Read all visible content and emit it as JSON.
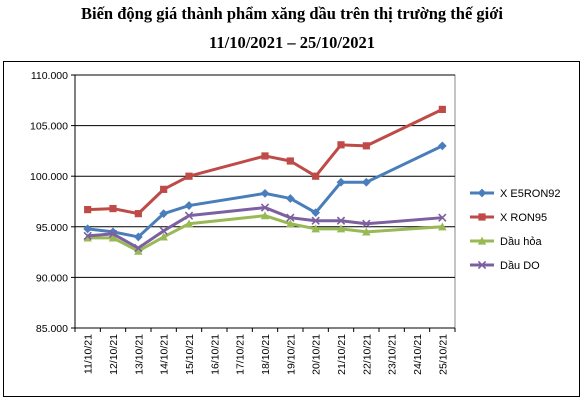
{
  "chart_data": {
    "type": "line",
    "title": "Biến động giá thành phẩm xăng dầu trên thị trường thế giới",
    "subtitle": "11/10/2021 – 25/10/2021",
    "xlabel": "",
    "ylabel": "",
    "categories": [
      "11/10/21",
      "12/10/21",
      "13/10/21",
      "14/10/21",
      "15/10/21",
      "16/10/21",
      "17/10/21",
      "18/10/21",
      "19/10/21",
      "20/10/21",
      "21/10/21",
      "22/10/21",
      "23/10/21",
      "24/10/21",
      "25/10/21"
    ],
    "ylim": [
      85000,
      110000
    ],
    "yticks": [
      85000,
      90000,
      95000,
      100000,
      105000,
      110000
    ],
    "ytick_labels": [
      "85.000",
      "90.000",
      "95.000",
      "100.000",
      "105.000",
      "110.000"
    ],
    "grid": "horizontal",
    "legend_position": "right",
    "series": [
      {
        "name": "X E5RON92",
        "color": "#4a7ebb",
        "marker": "diamond",
        "points": [
          [
            0,
            94800
          ],
          [
            1,
            94500
          ],
          [
            2,
            94000
          ],
          [
            3,
            96300
          ],
          [
            4,
            97100
          ],
          [
            7,
            98300
          ],
          [
            8,
            97800
          ],
          [
            9,
            96400
          ],
          [
            10,
            99400
          ],
          [
            11,
            99400
          ],
          [
            14,
            103000
          ]
        ]
      },
      {
        "name": "X RON95",
        "color": "#be4b48",
        "marker": "square",
        "points": [
          [
            0,
            96700
          ],
          [
            1,
            96800
          ],
          [
            2,
            96300
          ],
          [
            3,
            98700
          ],
          [
            4,
            100000
          ],
          [
            7,
            102000
          ],
          [
            8,
            101500
          ],
          [
            9,
            100000
          ],
          [
            10,
            103100
          ],
          [
            11,
            103000
          ],
          [
            14,
            106600
          ]
        ]
      },
      {
        "name": "Dầu hỏa",
        "color": "#98b954",
        "marker": "triangle",
        "points": [
          [
            0,
            93900
          ],
          [
            1,
            93900
          ],
          [
            2,
            92600
          ],
          [
            3,
            94000
          ],
          [
            4,
            95300
          ],
          [
            7,
            96100
          ],
          [
            8,
            95300
          ],
          [
            9,
            94800
          ],
          [
            10,
            94800
          ],
          [
            11,
            94500
          ],
          [
            14,
            95000
          ]
        ]
      },
      {
        "name": "Dầu DO",
        "color": "#7d60a0",
        "marker": "x",
        "points": [
          [
            0,
            94100
          ],
          [
            1,
            94300
          ],
          [
            2,
            92900
          ],
          [
            3,
            94600
          ],
          [
            4,
            96100
          ],
          [
            7,
            96900
          ],
          [
            8,
            95900
          ],
          [
            9,
            95600
          ],
          [
            10,
            95600
          ],
          [
            11,
            95300
          ],
          [
            14,
            95900
          ]
        ]
      }
    ]
  }
}
